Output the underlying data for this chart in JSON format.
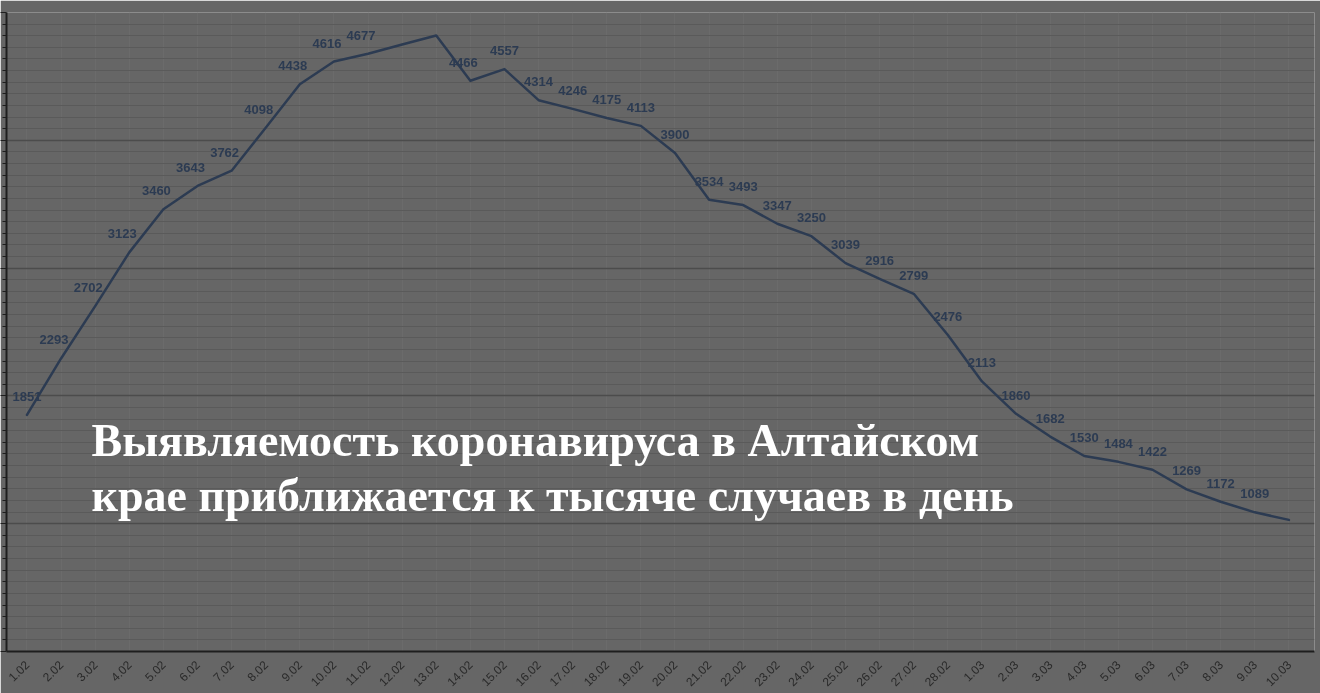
{
  "chart_data": {
    "type": "line",
    "title": "Выявляемость коронавируса в Алтайском крае приближается к тысяче случаев в день",
    "categories": [
      "1.02",
      "2.02",
      "3.02",
      "4.02",
      "5.02",
      "6.02",
      "7.02",
      "8.02",
      "9.02",
      "10.02",
      "11.02",
      "12.02",
      "13.02",
      "14.02",
      "15.02",
      "16.02",
      "17.02",
      "18.02",
      "19.02",
      "20.02",
      "21.02",
      "22.02",
      "23.02",
      "24.02",
      "25.02",
      "26.02",
      "27.02",
      "28.02",
      "1.03",
      "2.03",
      "3.03",
      "4.03",
      "5.03",
      "6.03",
      "7.03",
      "8.03",
      "9.03",
      "10.03"
    ],
    "series": [
      {
        "color": "#2c3b52",
        "values": [
          1851,
          2293,
          2702,
          3123,
          3460,
          3643,
          3762,
          4098,
          4438,
          4616,
          4677,
          4750,
          4820,
          4466,
          4557,
          4314,
          4246,
          4175,
          4113,
          3900,
          3534,
          3493,
          3347,
          3250,
          3039,
          2916,
          2799,
          2476,
          2113,
          1860,
          1682,
          1530,
          1484,
          1422,
          1269,
          1172,
          1089,
          1030
        ],
        "value_labels": [
          "1851",
          "2293",
          "2702",
          "3123",
          "3460",
          "3643",
          "3762",
          "4098",
          "4438",
          "4616",
          "4677",
          null,
          null,
          "4466",
          "4557",
          "4314",
          "4246",
          "4175",
          "4113",
          "3900",
          "3534",
          "3493",
          "3347",
          "3250",
          "3039",
          "2916",
          "2799",
          "2476",
          "2113",
          "1860",
          "1682",
          "1530",
          "1484",
          "1422",
          "1269",
          "1172",
          "1089",
          null
        ]
      }
    ],
    "ylim": [
      0,
      5000
    ],
    "yticks": [
      {
        "value": 0,
        "label": null
      },
      {
        "value": 90.9,
        "label": null
      },
      {
        "value": 181.8,
        "label": null
      },
      {
        "value": 272.7,
        "label": null
      },
      {
        "value": 363.6,
        "label": null
      },
      {
        "value": 454.5,
        "label": null
      },
      {
        "value": 545.5,
        "label": null
      },
      {
        "value": 636.4,
        "label": null
      },
      {
        "value": 727.3,
        "label": null
      },
      {
        "value": 818.2,
        "label": null
      },
      {
        "value": 909.1,
        "label": null
      },
      {
        "value": 1000,
        "label": null
      },
      {
        "value": 1090.9,
        "label": null
      },
      {
        "value": 1181.8,
        "label": null
      },
      {
        "value": 1272.7,
        "label": null
      },
      {
        "value": 1363.6,
        "label": null
      },
      {
        "value": 1454.5,
        "label": null
      },
      {
        "value": 1545.5,
        "label": null
      },
      {
        "value": 1636.4,
        "label": null
      },
      {
        "value": 1727.3,
        "label": null
      },
      {
        "value": 1818.2,
        "label": null
      },
      {
        "value": 1909.1,
        "label": null
      },
      {
        "value": 2000,
        "label": null
      },
      {
        "value": 2090.9,
        "label": null
      },
      {
        "value": 2181.8,
        "label": null
      },
      {
        "value": 2272.7,
        "label": null
      },
      {
        "value": 2363.6,
        "label": null
      },
      {
        "value": 2454.5,
        "label": null
      },
      {
        "value": 2545.5,
        "label": null
      },
      {
        "value": 2636.4,
        "label": null
      },
      {
        "value": 2727.3,
        "label": null
      },
      {
        "value": 2818.2,
        "label": null
      },
      {
        "value": 2909.1,
        "label": null
      },
      {
        "value": 3000,
        "label": null
      },
      {
        "value": 3090.9,
        "label": null
      },
      {
        "value": 3181.8,
        "label": null
      },
      {
        "value": 3272.7,
        "label": null
      },
      {
        "value": 3363.6,
        "label": null
      },
      {
        "value": 3454.5,
        "label": null
      },
      {
        "value": 3545.5,
        "label": null
      },
      {
        "value": 3636.4,
        "label": null
      },
      {
        "value": 3727.3,
        "label": null
      },
      {
        "value": 3818.2,
        "label": null
      },
      {
        "value": 3909.1,
        "label": null
      },
      {
        "value": 4000,
        "label": null
      },
      {
        "value": 4090.9,
        "label": null
      },
      {
        "value": 4181.8,
        "label": null
      },
      {
        "value": 4272.7,
        "label": null
      },
      {
        "value": 4363.6,
        "label": null
      },
      {
        "value": 4454.5,
        "label": null
      },
      {
        "value": 4545.5,
        "label": null
      },
      {
        "value": 4636.4,
        "label": null
      },
      {
        "value": 4727.3,
        "label": null
      },
      {
        "value": 4818.2,
        "label": null
      },
      {
        "value": 4909.1,
        "label": null
      },
      {
        "value": 5000,
        "label": null
      }
    ],
    "tick_labels": "x",
    "grid": true
  }
}
